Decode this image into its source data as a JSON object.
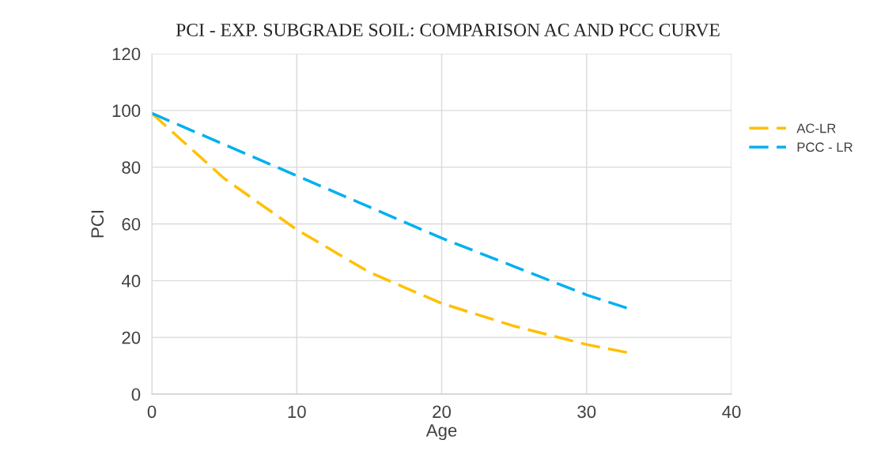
{
  "chart_data": {
    "type": "line",
    "title": "PCI - EXP. SUBGRADE SOIL: COMPARISON AC AND PCC CURVE",
    "xlabel": "Age",
    "ylabel": "PCI",
    "x": [
      0,
      5,
      10,
      15,
      20,
      25,
      30,
      33
    ],
    "series": [
      {
        "name": "AC-LR",
        "color": "#ffc000",
        "values": [
          99,
          76,
          58,
          43,
          32,
          24,
          17.5,
          14.5
        ],
        "line_style": "dashed"
      },
      {
        "name": "PCC - LR",
        "color": "#00b0f0",
        "values": [
          99,
          88,
          77,
          66,
          55,
          45,
          35,
          30
        ],
        "line_style": "dashed"
      }
    ],
    "xlim": [
      0,
      40
    ],
    "xticks": [
      0,
      10,
      20,
      30,
      40
    ],
    "ylim": [
      0,
      120
    ],
    "yticks": [
      0,
      20,
      40,
      60,
      80,
      100,
      120
    ],
    "grid": true,
    "legend": "right",
    "marker": "none"
  }
}
